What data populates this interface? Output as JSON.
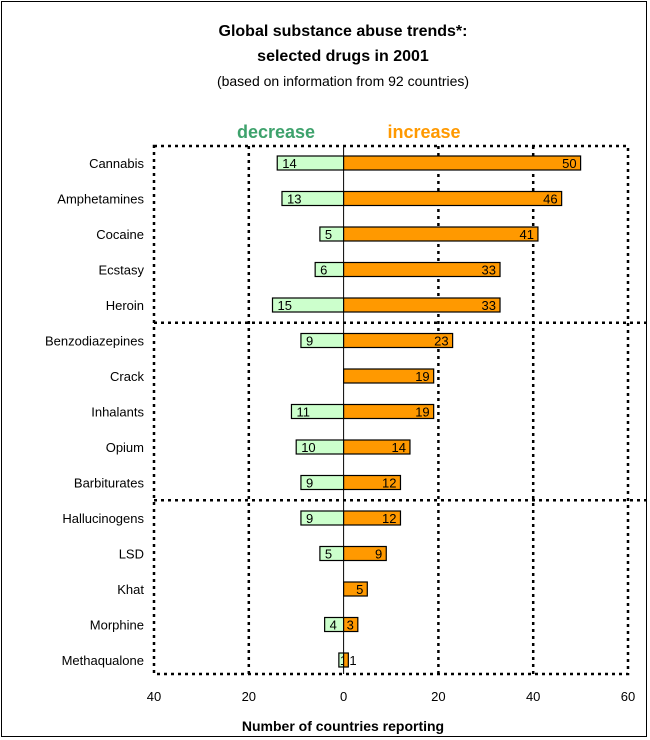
{
  "chart_data": {
    "type": "bar",
    "title": "Global substance abuse trends*:",
    "subtitle_line2": "selected drugs in 2001",
    "subtitle": "(based on information from 92 countries)",
    "xlabel": "Number of countries reporting",
    "ylabel": "",
    "legend": {
      "decrease_label": "decrease",
      "increase_label": "increase",
      "placement": "top-center"
    },
    "colors": {
      "decrease": "#ccffcc",
      "increase": "#ff9900",
      "decrease_label_color": "#3ea26c",
      "increase_label_color": "#ff9900"
    },
    "xlim": [
      -40,
      60
    ],
    "x_ticks": [
      {
        "value": -40,
        "label": "40"
      },
      {
        "value": -20,
        "label": "20"
      },
      {
        "value": 0,
        "label": "0"
      },
      {
        "value": 20,
        "label": "20"
      },
      {
        "value": 40,
        "label": "40"
      },
      {
        "value": 60,
        "label": "60"
      }
    ],
    "categories": [
      "Cannabis",
      "Amphetamines",
      "Cocaine",
      "Ecstasy",
      "Heroin",
      "Benzodiazepines",
      "Crack",
      "Inhalants",
      "Opium",
      "Barbiturates",
      "Hallucinogens",
      "LSD",
      "Khat",
      "Morphine",
      "Methaqualone"
    ],
    "series": [
      {
        "name": "decrease",
        "values": [
          14,
          13,
          5,
          6,
          15,
          9,
          0,
          11,
          10,
          9,
          9,
          5,
          0,
          4,
          1
        ],
        "labels": [
          "14",
          "13",
          "5",
          "6",
          "15",
          "9",
          "",
          "11",
          "10",
          "9",
          "9",
          "5",
          "",
          "4",
          "1"
        ]
      },
      {
        "name": "increase",
        "values": [
          50,
          46,
          41,
          33,
          33,
          23,
          19,
          19,
          14,
          12,
          12,
          9,
          5,
          3,
          1
        ],
        "labels": [
          "50",
          "46",
          "41",
          "33",
          "33",
          "23",
          "19",
          "19",
          "14",
          "12",
          "12",
          "9",
          "5",
          "3",
          "1"
        ]
      }
    ],
    "group_separators_after": [
      4,
      9
    ],
    "grid": "dotted-vertical"
  }
}
